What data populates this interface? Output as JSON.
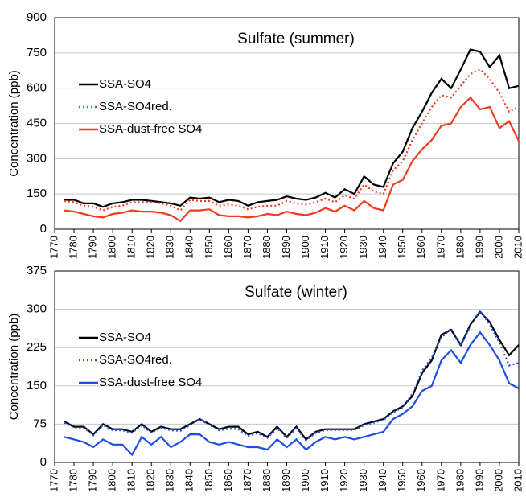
{
  "chart_data": [
    {
      "type": "line",
      "title": "Sulfate (summer)",
      "y_label": "Concentration (ppb)",
      "x": [
        1775,
        1780,
        1785,
        1790,
        1795,
        1800,
        1805,
        1810,
        1815,
        1820,
        1825,
        1830,
        1835,
        1840,
        1845,
        1850,
        1855,
        1860,
        1865,
        1870,
        1875,
        1880,
        1885,
        1890,
        1895,
        1900,
        1905,
        1910,
        1915,
        1920,
        1925,
        1930,
        1935,
        1940,
        1945,
        1950,
        1955,
        1960,
        1965,
        1970,
        1975,
        1980,
        1985,
        1990,
        1995,
        2000,
        2005,
        2010
      ],
      "xlim": [
        1770,
        2010
      ],
      "xticks": [
        1770,
        1780,
        1790,
        1800,
        1810,
        1820,
        1830,
        1840,
        1850,
        1860,
        1870,
        1880,
        1890,
        1900,
        1910,
        1920,
        1930,
        1940,
        1950,
        1960,
        1970,
        1980,
        1990,
        2000,
        2010
      ],
      "ylim": [
        0,
        900
      ],
      "yticks": [
        0,
        150,
        300,
        450,
        600,
        750,
        900
      ],
      "grid": true,
      "series": [
        {
          "name": "SSA-SO4",
          "color": "#000000",
          "dash": "solid",
          "values": [
            125,
            125,
            110,
            110,
            95,
            110,
            115,
            125,
            125,
            120,
            115,
            110,
            100,
            135,
            130,
            135,
            115,
            125,
            120,
            100,
            115,
            120,
            125,
            140,
            130,
            125,
            135,
            155,
            135,
            170,
            150,
            225,
            190,
            180,
            280,
            330,
            430,
            500,
            580,
            640,
            600,
            680,
            765,
            755,
            690,
            740,
            600,
            610
          ]
        },
        {
          "name": "SSA-SO4red.",
          "color": "#f03c1e",
          "dash": "dotted",
          "values": [
            120,
            115,
            100,
            95,
            80,
            95,
            100,
            115,
            115,
            115,
            110,
            100,
            80,
            125,
            120,
            120,
            100,
            105,
            100,
            85,
            95,
            100,
            100,
            120,
            110,
            105,
            115,
            130,
            115,
            145,
            130,
            190,
            160,
            150,
            250,
            290,
            380,
            450,
            520,
            570,
            560,
            610,
            660,
            680,
            640,
            580,
            500,
            520
          ]
        },
        {
          "name": "SSA-dust-free SO4",
          "color": "#f03c1e",
          "dash": "solid",
          "values": [
            80,
            75,
            65,
            55,
            50,
            65,
            70,
            80,
            75,
            75,
            70,
            60,
            35,
            80,
            80,
            85,
            60,
            55,
            55,
            50,
            55,
            65,
            60,
            75,
            65,
            60,
            70,
            90,
            75,
            100,
            80,
            120,
            90,
            80,
            190,
            210,
            290,
            340,
            380,
            440,
            450,
            520,
            560,
            510,
            520,
            430,
            460,
            375
          ]
        }
      ]
    },
    {
      "type": "line",
      "title": "Sulfate (winter)",
      "y_label": "Concentration (ppb)",
      "x": [
        1775,
        1780,
        1785,
        1790,
        1795,
        1800,
        1805,
        1810,
        1815,
        1820,
        1825,
        1830,
        1835,
        1840,
        1845,
        1850,
        1855,
        1860,
        1865,
        1870,
        1875,
        1880,
        1885,
        1890,
        1895,
        1900,
        1905,
        1910,
        1915,
        1920,
        1925,
        1930,
        1935,
        1940,
        1945,
        1950,
        1955,
        1960,
        1965,
        1970,
        1975,
        1980,
        1985,
        1990,
        1995,
        2000,
        2005,
        2010
      ],
      "xlim": [
        1770,
        2010
      ],
      "xticks": [
        1770,
        1780,
        1790,
        1800,
        1810,
        1820,
        1830,
        1840,
        1850,
        1860,
        1870,
        1880,
        1890,
        1900,
        1910,
        1920,
        1930,
        1940,
        1950,
        1960,
        1970,
        1980,
        1990,
        2000,
        2010
      ],
      "ylim": [
        0,
        375
      ],
      "yticks": [
        0,
        75,
        150,
        225,
        300,
        375
      ],
      "grid": true,
      "series": [
        {
          "name": "SSA-SO4",
          "color": "#000000",
          "dash": "solid",
          "values": [
            80,
            70,
            70,
            55,
            75,
            65,
            65,
            60,
            75,
            60,
            70,
            65,
            65,
            75,
            85,
            75,
            65,
            70,
            70,
            55,
            60,
            50,
            70,
            50,
            70,
            45,
            60,
            65,
            65,
            65,
            65,
            75,
            80,
            85,
            100,
            110,
            130,
            175,
            200,
            250,
            260,
            230,
            270,
            295,
            275,
            240,
            210,
            230
          ]
        },
        {
          "name": "SSA-SO4red.",
          "color": "#1f4fe0",
          "dash": "dotted",
          "values": [
            78,
            68,
            68,
            53,
            73,
            63,
            63,
            58,
            73,
            58,
            68,
            63,
            62,
            73,
            85,
            73,
            63,
            66,
            65,
            52,
            57,
            48,
            67,
            48,
            67,
            43,
            58,
            63,
            63,
            63,
            63,
            73,
            78,
            83,
            98,
            108,
            135,
            180,
            205,
            245,
            262,
            228,
            268,
            297,
            270,
            235,
            190,
            195
          ]
        },
        {
          "name": "SSA-dust-free SO4",
          "color": "#1f4fe0",
          "dash": "solid",
          "values": [
            50,
            45,
            40,
            30,
            45,
            35,
            35,
            15,
            50,
            35,
            50,
            30,
            40,
            55,
            55,
            40,
            35,
            40,
            35,
            30,
            30,
            25,
            45,
            30,
            45,
            25,
            40,
            50,
            45,
            50,
            45,
            50,
            55,
            60,
            85,
            95,
            110,
            140,
            150,
            200,
            220,
            195,
            230,
            255,
            230,
            200,
            155,
            145
          ]
        }
      ]
    }
  ]
}
